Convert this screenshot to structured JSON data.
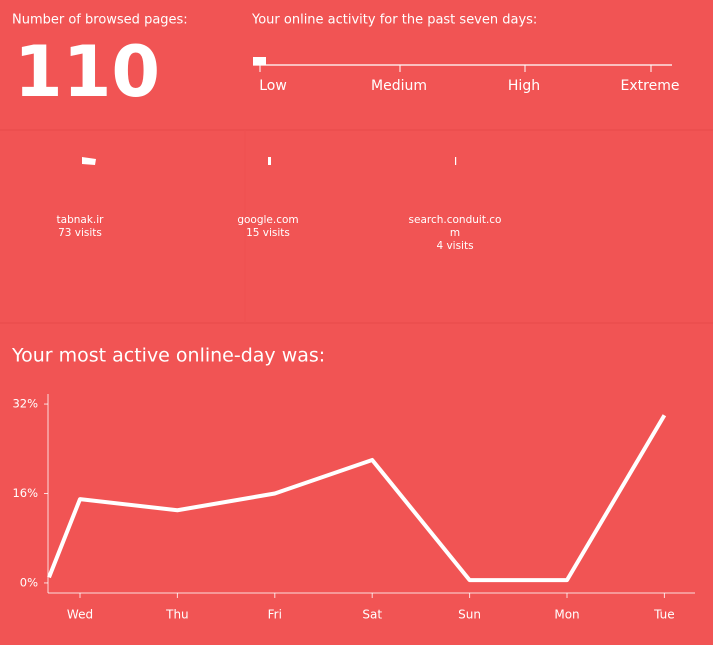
{
  "header": {
    "pages_label": "Number of browsed pages:",
    "pages_count": "110",
    "activity_label": "Your online activity for the past seven days:"
  },
  "meter": {
    "labels": [
      "Low",
      "Medium",
      "High",
      "Extreme"
    ]
  },
  "sites": [
    {
      "name": "tabnak.ir",
      "visits": "73 visits"
    },
    {
      "name": "google.com",
      "visits": "15 visits"
    },
    {
      "name": "search.conduit.com",
      "visits": "4 visits"
    }
  ],
  "chart_data": {
    "type": "line",
    "title": "Your most active online-day was:",
    "categories": [
      null,
      "Wed",
      "Thu",
      "Fri",
      "Sat",
      "Sun",
      "Mon",
      "Tue"
    ],
    "series": [
      {
        "name": null,
        "color": "#ffffff",
        "values": [
          1,
          15,
          13,
          16,
          22,
          0.5,
          0.5,
          30
        ]
      }
    ],
    "ylim": [
      -1.8,
      33.8
    ],
    "yticks": [
      {
        "value": 0,
        "label": "0%"
      },
      {
        "value": 16,
        "label": "16%"
      },
      {
        "value": 32,
        "label": "32%"
      }
    ]
  }
}
